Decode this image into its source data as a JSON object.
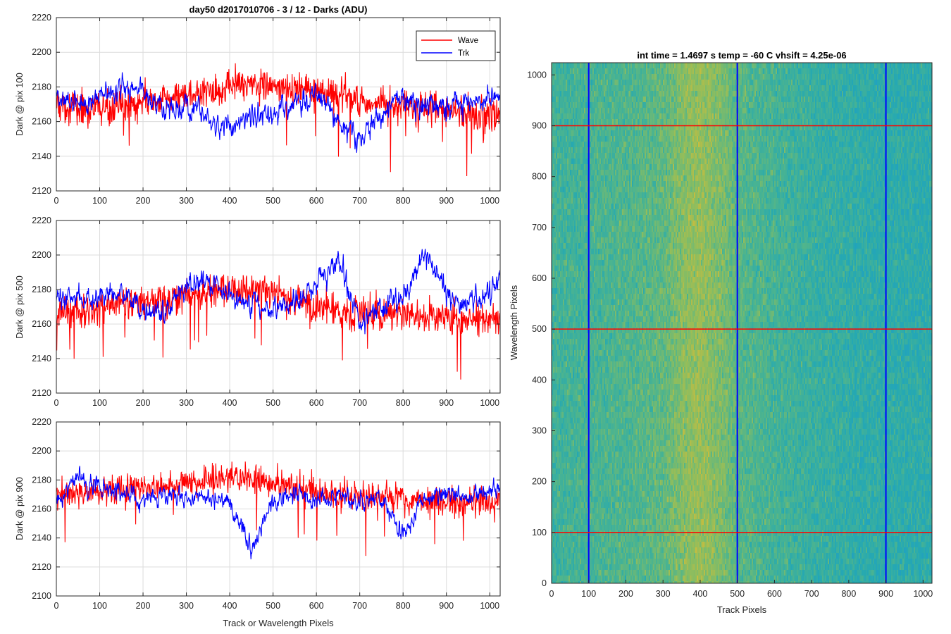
{
  "figure": {
    "title": "day50 d2017010706 - 3 / 12 - Darks (ADU)",
    "heatmap_title": "int time = 1.4697 s    temp = -60 C    vhsift = 4.25e-06"
  },
  "colors": {
    "wave": "#ff0000",
    "trk": "#0000ff",
    "grid": "#dcdcdc",
    "axis": "#262626"
  },
  "chart_data": [
    {
      "type": "line",
      "title": "day50 d2017010706 - 3 / 12 - Darks (ADU)",
      "xlabel": "",
      "ylabel": "Dark @ pix 100",
      "xlim": [
        0,
        1024
      ],
      "ylim": [
        2120,
        2220
      ],
      "xticks": [
        0,
        100,
        200,
        300,
        400,
        500,
        600,
        700,
        800,
        900,
        1000
      ],
      "yticks": [
        2120,
        2140,
        2160,
        2180,
        2200,
        2220
      ],
      "grid": true,
      "legend": {
        "position": "top-right",
        "entries": [
          "Wave",
          "Trk"
        ]
      },
      "series": [
        {
          "name": "Wave",
          "color": "#ff0000",
          "x": [
            0,
            50,
            100,
            150,
            200,
            250,
            300,
            350,
            400,
            450,
            500,
            550,
            600,
            650,
            700,
            750,
            800,
            850,
            900,
            950,
            1024
          ],
          "values": [
            2170,
            2168,
            2167,
            2169,
            2171,
            2172,
            2175,
            2178,
            2181,
            2183,
            2180,
            2178,
            2177,
            2176,
            2172,
            2170,
            2168,
            2167,
            2166,
            2165,
            2164
          ]
        },
        {
          "name": "Trk",
          "color": "#0000ff",
          "x": [
            0,
            50,
            100,
            150,
            200,
            250,
            300,
            350,
            400,
            450,
            500,
            550,
            600,
            650,
            700,
            750,
            800,
            850,
            900,
            950,
            1024
          ],
          "values": [
            2175,
            2170,
            2176,
            2180,
            2178,
            2165,
            2168,
            2160,
            2156,
            2165,
            2165,
            2170,
            2175,
            2162,
            2150,
            2165,
            2172,
            2170,
            2168,
            2172,
            2173
          ]
        }
      ]
    },
    {
      "type": "line",
      "xlabel": "",
      "ylabel": "Dark @ pix 500",
      "xlim": [
        0,
        1024
      ],
      "ylim": [
        2120,
        2220
      ],
      "xticks": [
        0,
        100,
        200,
        300,
        400,
        500,
        600,
        700,
        800,
        900,
        1000
      ],
      "yticks": [
        2120,
        2140,
        2160,
        2180,
        2200,
        2220
      ],
      "grid": true,
      "series": [
        {
          "name": "Wave",
          "color": "#ff0000",
          "x": [
            0,
            50,
            100,
            150,
            200,
            250,
            300,
            350,
            400,
            450,
            500,
            550,
            600,
            650,
            700,
            750,
            800,
            850,
            900,
            950,
            1024
          ],
          "values": [
            2167,
            2168,
            2170,
            2172,
            2173,
            2174,
            2176,
            2179,
            2181,
            2180,
            2178,
            2174,
            2170,
            2168,
            2166,
            2166,
            2165,
            2165,
            2164,
            2164,
            2163
          ]
        },
        {
          "name": "Trk",
          "color": "#0000ff",
          "x": [
            0,
            50,
            100,
            150,
            200,
            250,
            300,
            350,
            400,
            450,
            500,
            550,
            600,
            650,
            700,
            750,
            800,
            850,
            900,
            950,
            1024
          ],
          "values": [
            2172,
            2176,
            2174,
            2178,
            2168,
            2166,
            2182,
            2186,
            2176,
            2170,
            2168,
            2172,
            2182,
            2198,
            2160,
            2168,
            2176,
            2200,
            2178,
            2168,
            2186
          ]
        }
      ]
    },
    {
      "type": "line",
      "xlabel": "Track or Wavelength Pixels",
      "ylabel": "Dark @ pix 900",
      "xlim": [
        0,
        1024
      ],
      "ylim": [
        2100,
        2220
      ],
      "xticks": [
        0,
        100,
        200,
        300,
        400,
        500,
        600,
        700,
        800,
        900,
        1000
      ],
      "yticks": [
        2100,
        2120,
        2140,
        2160,
        2180,
        2200,
        2220
      ],
      "grid": true,
      "series": [
        {
          "name": "Wave",
          "color": "#ff0000",
          "x": [
            0,
            50,
            100,
            150,
            200,
            250,
            300,
            350,
            400,
            450,
            500,
            550,
            600,
            650,
            700,
            750,
            800,
            850,
            900,
            950,
            1024
          ],
          "values": [
            2170,
            2171,
            2172,
            2174,
            2175,
            2176,
            2178,
            2180,
            2182,
            2180,
            2178,
            2175,
            2172,
            2170,
            2169,
            2168,
            2167,
            2166,
            2165,
            2165,
            2164
          ]
        },
        {
          "name": "Trk",
          "color": "#0000ff",
          "x": [
            0,
            50,
            100,
            150,
            200,
            250,
            300,
            350,
            400,
            450,
            500,
            550,
            600,
            650,
            700,
            750,
            800,
            850,
            900,
            950,
            1024
          ],
          "values": [
            2168,
            2182,
            2174,
            2172,
            2166,
            2172,
            2168,
            2168,
            2165,
            2132,
            2165,
            2172,
            2165,
            2170,
            2165,
            2168,
            2140,
            2168,
            2170,
            2168,
            2175
          ]
        }
      ]
    },
    {
      "type": "heatmap",
      "title": "int time = 1.4697 s    temp = -60 C    vhsift = 4.25e-06",
      "xlabel": "Track Pixels",
      "ylabel": "Wavelength Pixels",
      "xlim": [
        0,
        1024
      ],
      "ylim": [
        0,
        1024
      ],
      "xticks": [
        0,
        100,
        200,
        300,
        400,
        500,
        600,
        700,
        800,
        900,
        1000
      ],
      "yticks": [
        0,
        100,
        200,
        300,
        400,
        500,
        600,
        700,
        800,
        900,
        1000
      ],
      "colormap": [
        "#1f9ec7",
        "#26a9b1",
        "#4cb48f",
        "#8cbd5f",
        "#c6bd3f"
      ],
      "column_profile": {
        "x": [
          0,
          100,
          200,
          300,
          350,
          400,
          450,
          500,
          600,
          700,
          800,
          900,
          1024
        ],
        "values": [
          0.42,
          0.46,
          0.5,
          0.58,
          0.72,
          0.8,
          0.7,
          0.55,
          0.45,
          0.38,
          0.33,
          0.3,
          0.3
        ]
      },
      "vertical_markers": {
        "color": "#0000ff",
        "x": [
          100,
          500,
          900
        ]
      },
      "horizontal_markers": {
        "color": "#ff0000",
        "y": [
          100,
          500,
          900
        ]
      }
    }
  ]
}
